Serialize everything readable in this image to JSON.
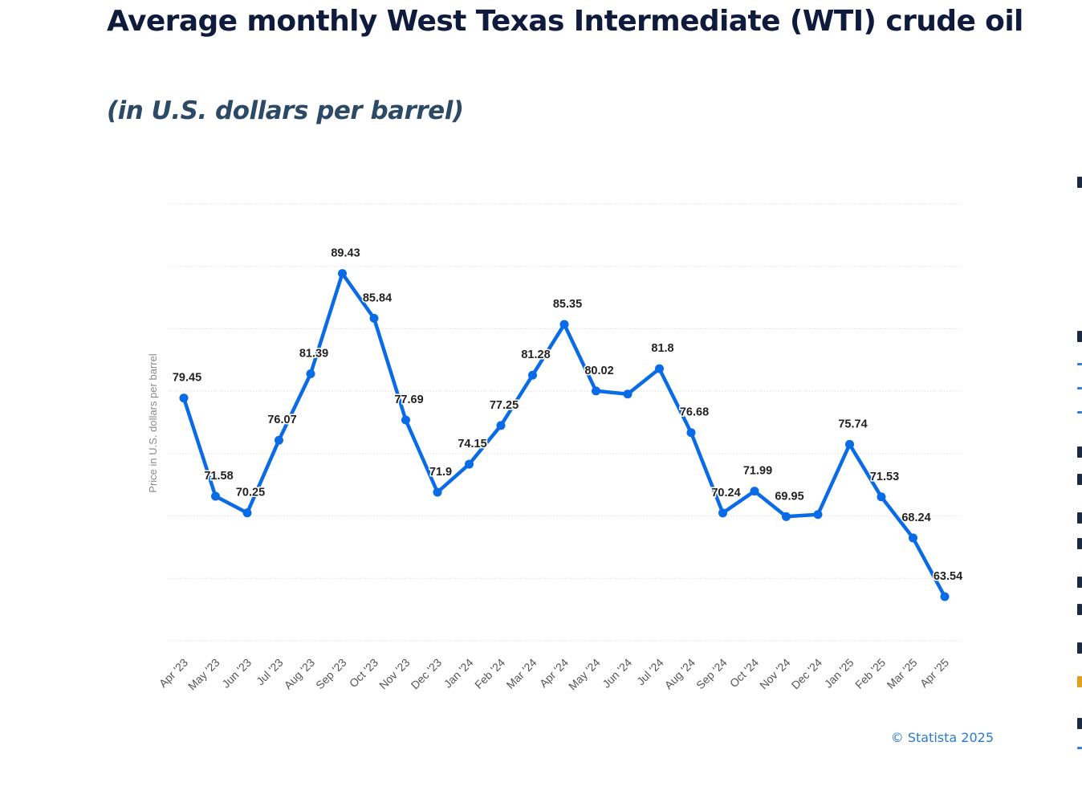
{
  "title": "Average monthly West Texas Intermediate (WTI) crude oil",
  "subtitle": "(in U.S. dollars per barrel)",
  "credit": "© Statista 2025",
  "colors": {
    "line": "#0a6be6",
    "grid": "#d9dde3",
    "label": "#222222",
    "axis_text": "#555555"
  },
  "chart_data": {
    "type": "line",
    "categories": [
      "Apr '23",
      "May '23",
      "Jun '23",
      "Jul '23",
      "Aug '23",
      "Sep '23",
      "Oct '23",
      "Nov '23",
      "Dec '23",
      "Jan '24",
      "Feb '24",
      "Mar '24",
      "Apr '24",
      "May '24",
      "Jun '24",
      "Jul '24",
      "Aug '24",
      "Sep '24",
      "Oct '24",
      "Nov '24",
      "Dec '24",
      "Jan '25",
      "Feb '25",
      "Mar '25",
      "Apr '25"
    ],
    "values": [
      79.45,
      71.58,
      70.25,
      76.07,
      81.39,
      89.43,
      85.84,
      77.69,
      71.9,
      74.15,
      77.25,
      81.28,
      85.35,
      80.02,
      79.77,
      81.8,
      76.68,
      70.24,
      71.99,
      69.95,
      70.12,
      75.74,
      71.53,
      68.24,
      63.54
    ],
    "data_labels": [
      "79.45",
      "71.58",
      "70.25",
      "76.07",
      "81.39",
      "89.43",
      "85.84",
      "77.69",
      "71.9",
      "74.15",
      "77.25",
      "81.28",
      "85.35",
      "80.02",
      "",
      "81.8",
      "76.68",
      "70.24",
      "71.99",
      "69.95",
      "",
      "75.74",
      "71.53",
      "68.24",
      "63.54"
    ],
    "title": "Average monthly West Texas Intermediate (WTI) crude oil",
    "subtitle": "(in U.S. dollars per barrel)",
    "xlabel": "",
    "ylabel": "Price in U.S. dollars per barrel",
    "ylim": [
      60,
      95
    ],
    "grid": true,
    "y_tick_labels_shown": false,
    "legend": "none"
  }
}
